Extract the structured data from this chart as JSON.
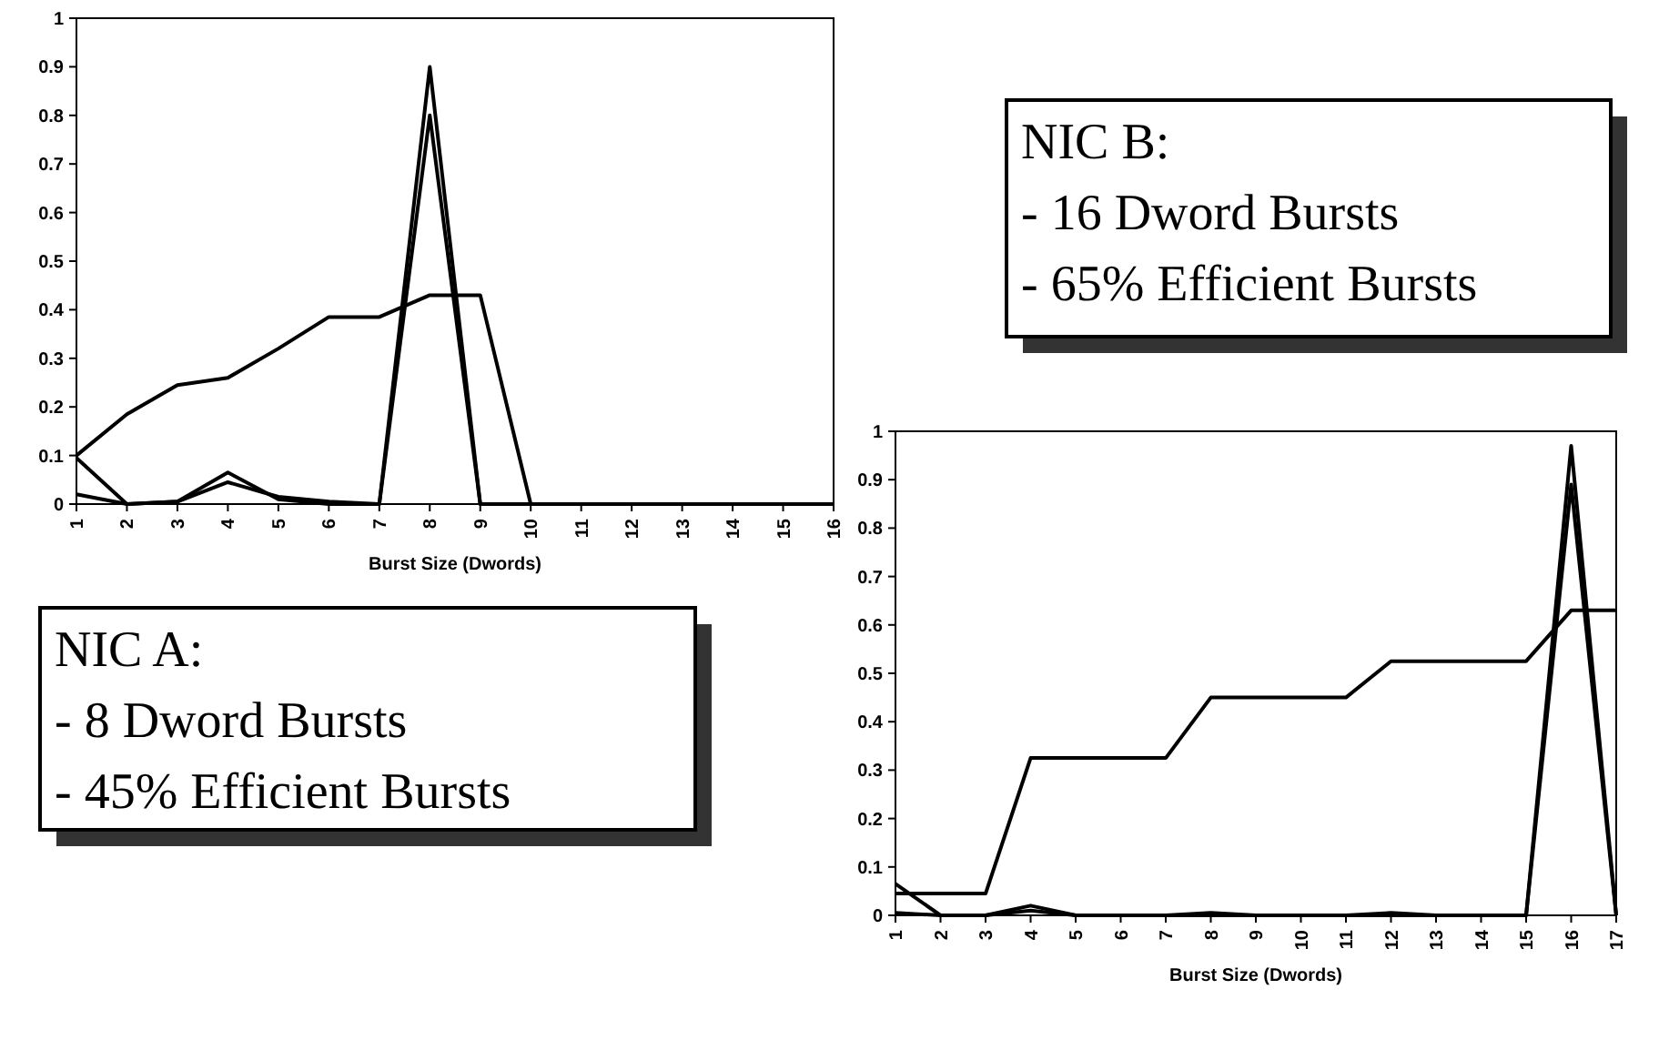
{
  "chart_data": [
    {
      "type": "line",
      "xlabel": "Burst Size (Dwords)",
      "categories": [
        "1",
        "2",
        "3",
        "4",
        "5",
        "6",
        "7",
        "8",
        "9",
        "10",
        "11",
        "12",
        "13",
        "14",
        "15",
        "16"
      ],
      "ylim": [
        0,
        1
      ],
      "yticks": [
        0,
        0.1,
        0.2,
        0.3,
        0.4,
        0.5,
        0.6,
        0.7,
        0.8,
        0.9,
        1
      ],
      "grid": false,
      "marker": "none",
      "line_style": "solid",
      "series": [
        {
          "color": "#000000",
          "values": [
            0.1,
            0.185,
            0.245,
            0.26,
            0.32,
            0.385,
            0.385,
            0.43,
            0.43,
            0,
            0,
            0,
            0,
            0,
            0,
            0
          ]
        },
        {
          "color": "#000000",
          "values": [
            0.095,
            0,
            0.005,
            0.065,
            0.01,
            0,
            0,
            0.9,
            0,
            0,
            0,
            0,
            0,
            0,
            0,
            0
          ]
        },
        {
          "color": "#000000",
          "values": [
            0.02,
            0,
            0.005,
            0.045,
            0.015,
            0.005,
            0,
            0.8,
            0,
            0,
            0,
            0,
            0,
            0,
            0,
            0
          ]
        }
      ]
    },
    {
      "type": "other",
      "title": "NIC B:",
      "annotations": [
        "- 16 Dword Bursts",
        "- 65% Efficient Bursts"
      ]
    },
    {
      "type": "other",
      "title": "NIC A:",
      "annotations": [
        "- 8 Dword Bursts",
        "- 45% Efficient Bursts"
      ]
    },
    {
      "type": "line",
      "xlabel": "Burst Size (Dwords)",
      "categories": [
        "1",
        "2",
        "3",
        "4",
        "5",
        "6",
        "7",
        "8",
        "9",
        "10",
        "11",
        "12",
        "13",
        "14",
        "15",
        "16",
        "17"
      ],
      "ylim": [
        0,
        1
      ],
      "yticks": [
        0,
        0.1,
        0.2,
        0.3,
        0.4,
        0.5,
        0.6,
        0.7,
        0.8,
        0.9,
        1
      ],
      "grid": false,
      "marker": "none",
      "line_style": "solid",
      "series": [
        {
          "color": "#000000",
          "values": [
            0.045,
            0.045,
            0.045,
            0.325,
            0.325,
            0.325,
            0.325,
            0.45,
            0.45,
            0.45,
            0.45,
            0.525,
            0.525,
            0.525,
            0.525,
            0.63,
            0.63
          ]
        },
        {
          "color": "#000000",
          "values": [
            0.065,
            0,
            0,
            0.02,
            0,
            0,
            0,
            0.005,
            0,
            0,
            0,
            0.005,
            0,
            0,
            0,
            0.97,
            0
          ]
        },
        {
          "color": "#000000",
          "values": [
            0.005,
            0,
            0,
            0.01,
            0,
            0,
            0,
            0,
            0,
            0,
            0,
            0,
            0,
            0,
            0,
            0.89,
            0
          ]
        }
      ]
    }
  ]
}
